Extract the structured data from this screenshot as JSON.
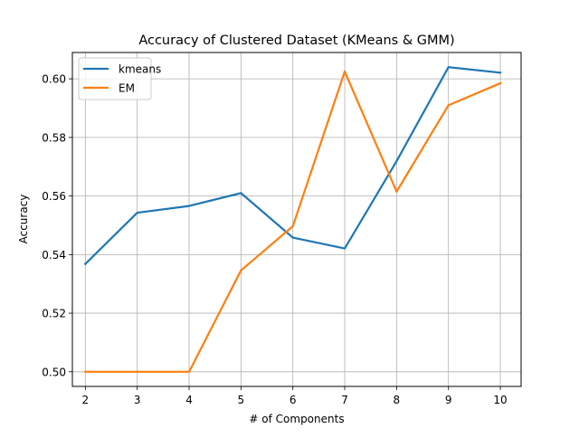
{
  "chart_data": {
    "type": "line",
    "title": "Accuracy of Clustered Dataset (KMeans & GMM)",
    "xlabel": "# of Components",
    "ylabel": "Accuracy",
    "x": [
      2,
      3,
      4,
      5,
      6,
      7,
      8,
      9,
      10
    ],
    "xlim": [
      1.75,
      10.4
    ],
    "ylim": [
      0.495,
      0.609
    ],
    "xticks": [
      2,
      3,
      4,
      5,
      6,
      7,
      8,
      9,
      10
    ],
    "yticks": [
      0.5,
      0.52,
      0.54,
      0.56,
      0.58,
      0.6
    ],
    "ytick_labels": [
      "0.50",
      "0.52",
      "0.54",
      "0.56",
      "0.58",
      "0.60"
    ],
    "grid": true,
    "legend_position": "top-left",
    "series": [
      {
        "name": "kmeans",
        "color": "#1f77b4",
        "values": [
          0.5368,
          0.5543,
          0.5566,
          0.561,
          0.5458,
          0.5421,
          0.5719,
          0.604,
          0.6021
        ]
      },
      {
        "name": "EM",
        "color": "#ff7f0e",
        "values": [
          0.5,
          0.5,
          0.5,
          0.5346,
          0.5497,
          0.6025,
          0.5615,
          0.591,
          0.5985
        ]
      }
    ]
  }
}
